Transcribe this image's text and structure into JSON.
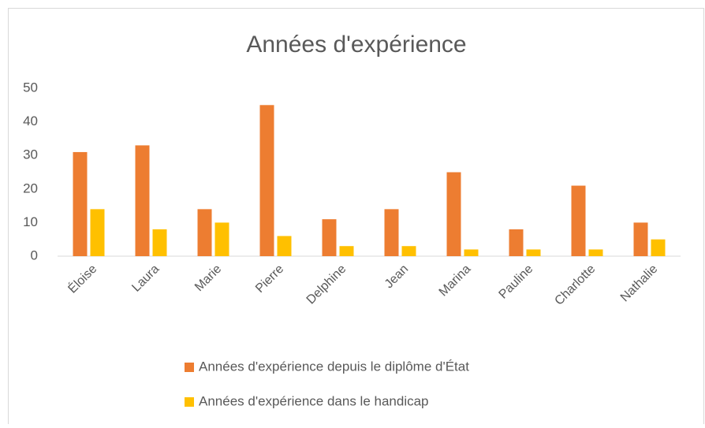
{
  "chart_data": {
    "type": "bar",
    "title": "Années d'expérience",
    "categories": [
      "Éloise",
      "Laura",
      "Marie",
      "Pierre",
      "Delphine",
      "Jean",
      "Marina",
      "Pauline",
      "Charlotte",
      "Nathalie"
    ],
    "series": [
      {
        "name": "Années d'expérience depuis le diplôme d'État",
        "color": "#ed7d31",
        "values": [
          31,
          33,
          14,
          45,
          11,
          14,
          25,
          8,
          21,
          10
        ]
      },
      {
        "name": "Années d'expérience dans le handicap",
        "color": "#ffc000",
        "values": [
          14,
          8,
          10,
          6,
          3,
          3,
          2,
          2,
          2,
          5
        ]
      }
    ],
    "ylim": [
      0,
      50
    ],
    "yticks": [
      0,
      10,
      20,
      30,
      40,
      50
    ],
    "grid": false,
    "legend": "bottom"
  }
}
